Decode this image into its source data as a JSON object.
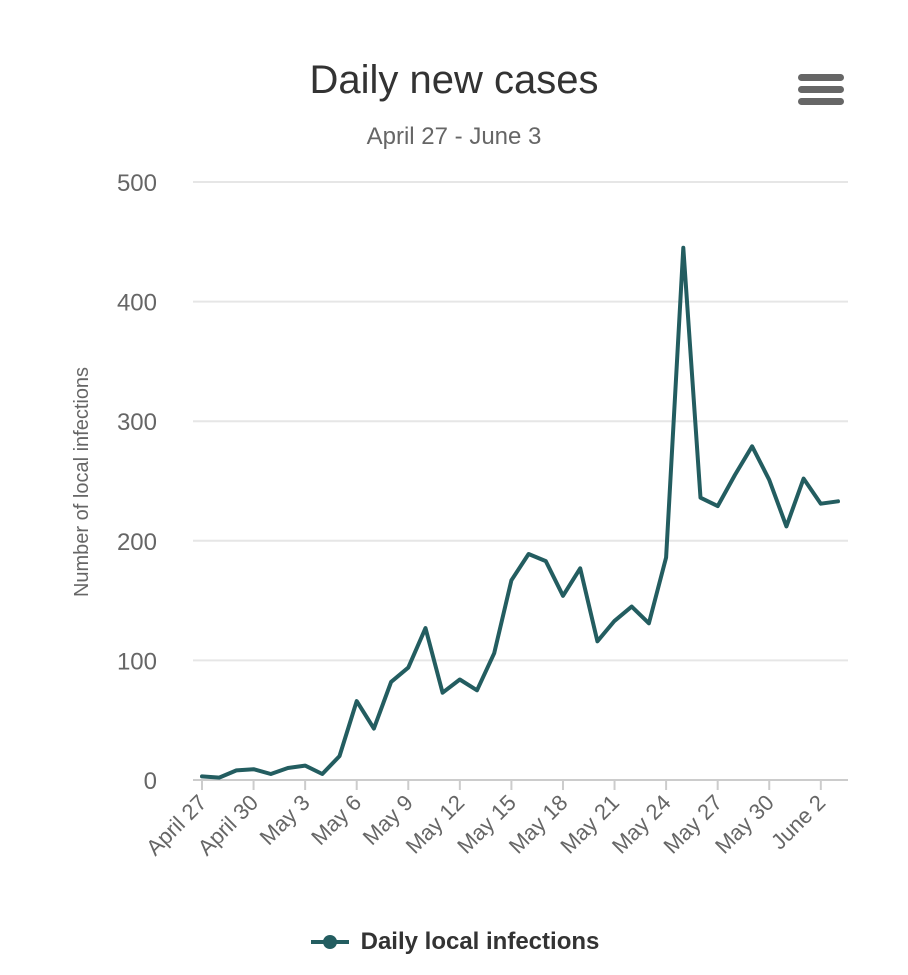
{
  "chart_data": {
    "type": "line",
    "title": "Daily new cases",
    "subtitle": "April 27 - June 3",
    "ylabel": "Number of local infections",
    "xlabel": "",
    "ylim": [
      0,
      500
    ],
    "yticks": [
      "0",
      "100",
      "200",
      "300",
      "400",
      "500"
    ],
    "categories": [
      "April 27",
      "April 28",
      "April 29",
      "April 30",
      "May 1",
      "May 2",
      "May 3",
      "May 4",
      "May 5",
      "May 6",
      "May 7",
      "May 8",
      "May 9",
      "May 10",
      "May 11",
      "May 12",
      "May 13",
      "May 14",
      "May 15",
      "May 16",
      "May 17",
      "May 18",
      "May 19",
      "May 20",
      "May 21",
      "May 22",
      "May 23",
      "May 24",
      "May 25",
      "May 26",
      "May 27",
      "May 28",
      "May 29",
      "May 30",
      "May 31",
      "June 1",
      "June 2",
      "June 3"
    ],
    "tick_labels": [
      "April 27",
      "April 30",
      "May 3",
      "May 6",
      "May 9",
      "May 12",
      "May 15",
      "May 18",
      "May 21",
      "May 24",
      "May 27",
      "May 30",
      "June 2"
    ],
    "series": [
      {
        "name": "Daily local infections",
        "color": "#235d60",
        "values": [
          3,
          2,
          8,
          9,
          5,
          10,
          12,
          5,
          20,
          66,
          43,
          82,
          94,
          127,
          73,
          84,
          75,
          106,
          167,
          189,
          183,
          154,
          177,
          116,
          133,
          145,
          131,
          186,
          445,
          236,
          229,
          255,
          279,
          251,
          212,
          252,
          231,
          233
        ]
      }
    ],
    "grid": true,
    "legend_position": "bottom"
  },
  "menu": {
    "icon": "hamburger-menu-icon"
  }
}
